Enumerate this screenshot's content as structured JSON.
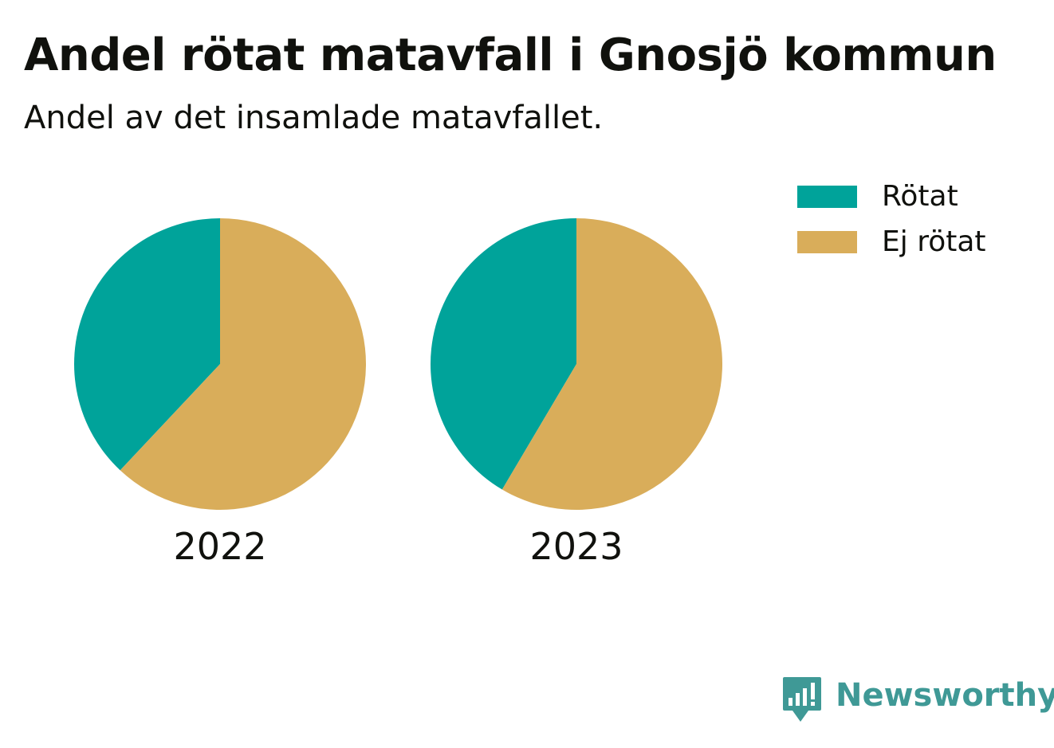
{
  "colors": {
    "rotat": "#00a39a",
    "ej_rotat": "#d9ad5a",
    "brand": "#3f9996",
    "text": "#10110d"
  },
  "brand": {
    "name": "Newsworthy",
    "icon": "newsworthy-logo-icon"
  },
  "chart_data": {
    "type": "pie",
    "title": "Andel rötat matavfall i Gnosjö kommun",
    "subtitle": "Andel av det insamlade matavfallet.",
    "legend_position": "top-right",
    "categories": [
      "Rötat",
      "Ej rötat"
    ],
    "pies": [
      {
        "label": "2022",
        "values": [
          38,
          62
        ]
      },
      {
        "label": "2023",
        "values": [
          41.5,
          58.5
        ]
      }
    ]
  }
}
